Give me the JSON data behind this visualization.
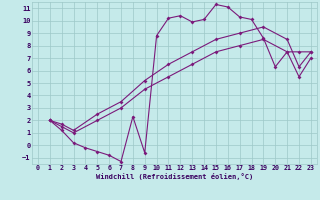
{
  "xlabel": "Windchill (Refroidissement éolien,°C)",
  "bg_color": "#c5eaea",
  "grid_color": "#9ec8c8",
  "line_color": "#7b1a7b",
  "xlim": [
    -0.5,
    23.5
  ],
  "ylim": [
    -1.5,
    11.5
  ],
  "xticks": [
    0,
    1,
    2,
    3,
    4,
    5,
    6,
    7,
    8,
    9,
    10,
    11,
    12,
    13,
    14,
    15,
    16,
    17,
    18,
    19,
    20,
    21,
    22,
    23
  ],
  "yticks": [
    -1,
    0,
    1,
    2,
    3,
    4,
    5,
    6,
    7,
    8,
    9,
    10,
    11
  ],
  "line1_x": [
    1,
    2,
    3,
    4,
    5,
    6,
    7,
    8,
    9,
    10,
    11,
    12,
    13,
    14,
    15,
    16,
    17,
    18,
    19,
    20,
    21,
    22,
    23
  ],
  "line1_y": [
    2,
    1.2,
    0.2,
    -0.2,
    -0.5,
    -0.8,
    -1.3,
    2.3,
    -0.6,
    8.8,
    10.2,
    10.4,
    9.9,
    10.1,
    11.3,
    11.1,
    10.3,
    10.1,
    8.6,
    6.3,
    7.5,
    7.5,
    7.5
  ],
  "line2_x": [
    1,
    2,
    3,
    5,
    7,
    9,
    11,
    13,
    15,
    17,
    19,
    21,
    22,
    23
  ],
  "line2_y": [
    2,
    1.7,
    1.2,
    2.5,
    3.5,
    5.2,
    6.5,
    7.5,
    8.5,
    9.0,
    9.5,
    8.5,
    6.3,
    7.5
  ],
  "line3_x": [
    1,
    2,
    3,
    5,
    7,
    9,
    11,
    13,
    15,
    17,
    19,
    21,
    22,
    23
  ],
  "line3_y": [
    2,
    1.5,
    1.0,
    2.0,
    3.0,
    4.5,
    5.5,
    6.5,
    7.5,
    8.0,
    8.5,
    7.5,
    5.5,
    7.0
  ]
}
